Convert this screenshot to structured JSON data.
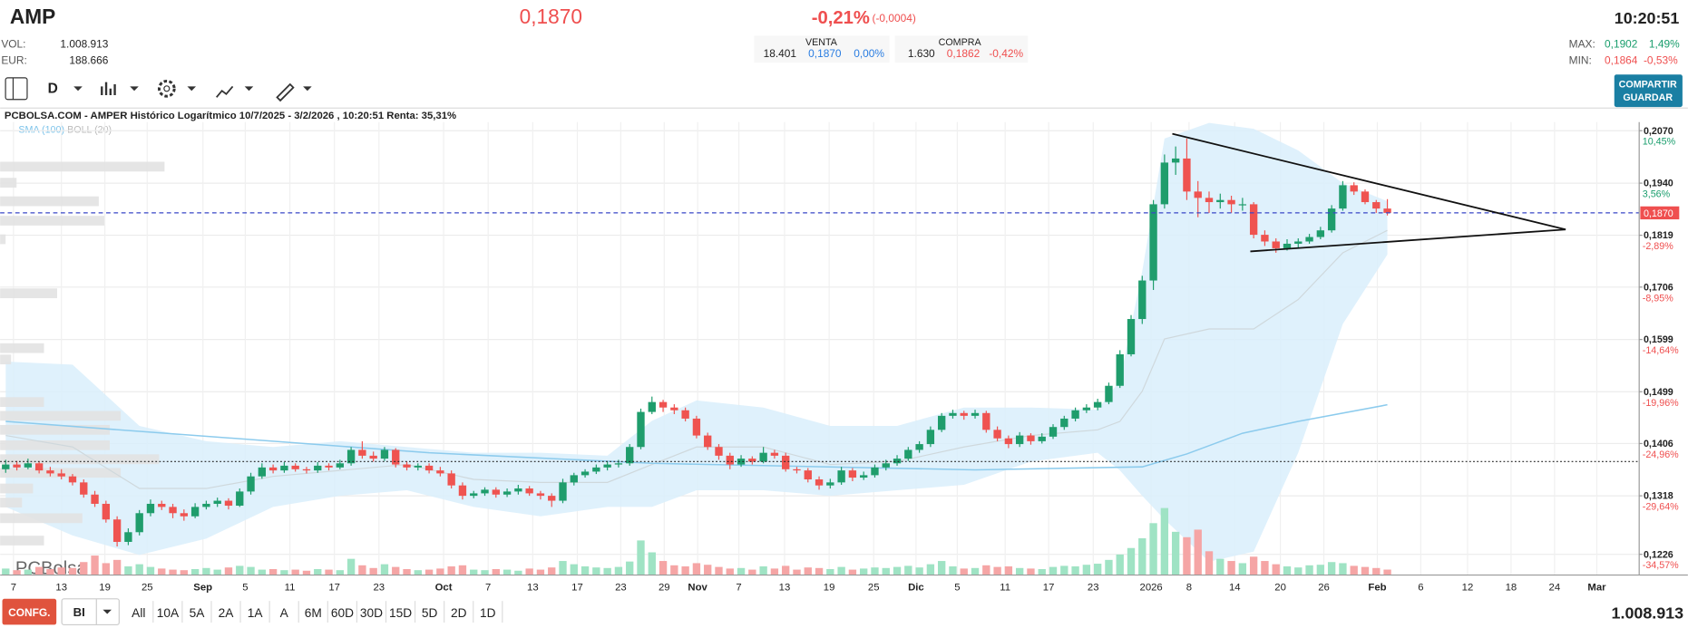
{
  "header": {
    "symbol": "AMP",
    "price": "0,1870",
    "change_pct": "-0,21%",
    "change": "(-0,0004)",
    "time": "10:20:51",
    "vol_label": "VOL:",
    "vol": "1.008.913",
    "eur_label": "EUR:",
    "eur": "188.666"
  },
  "quotes": {
    "sell": {
      "label": "VENTA",
      "volume": "18.401",
      "price": "0,1870",
      "pct": "0,00%"
    },
    "buy": {
      "label": "COMPRA",
      "volume": "1.630",
      "price": "0,1862",
      "pct": "-0,42%"
    }
  },
  "range": {
    "max_label": "MAX:",
    "max": "0,1902",
    "max_pct": "1,49%",
    "min_label": "MIN:",
    "min": "0,1864",
    "min_pct": "-0,53%"
  },
  "toolbar": {
    "interval": "D",
    "share_buttons": [
      "COMPARTIR",
      "GUARDAR"
    ]
  },
  "chart_data": {
    "type": "candlestick",
    "title": "PCBOLSA.COM - AMPER Histórico Logarítmico 10/7/2025 - 3/2/2026 , 10:20:51 Renta: 35,31%",
    "indicators": [
      "SMA (100)",
      "BOLL (20)"
    ],
    "watermark": "PCBolsa",
    "log": true,
    "grid": true,
    "up_color": "#1f9d6c",
    "down_color": "#ef5350",
    "volume_up_color": "#9fe3c4",
    "volume_down_color": "#f5a5a5",
    "ylim": [
      0.1195,
      0.2092
    ],
    "yticks": [
      {
        "value": 0.207,
        "label": "0,2070"
      },
      {
        "value": 0.194,
        "label": "0,1940"
      },
      {
        "value": 0.1819,
        "label": "0,1819"
      },
      {
        "value": 0.1706,
        "label": "0,1706"
      },
      {
        "value": 0.1599,
        "label": "0,1599"
      },
      {
        "value": 0.1499,
        "label": "0,1499"
      },
      {
        "value": 0.1406,
        "label": "0,1406"
      },
      {
        "value": 0.1318,
        "label": "0,1318"
      },
      {
        "value": 0.1226,
        "label": "0,1226"
      }
    ],
    "ytick_pcts": [
      "10,45%",
      "3,56%",
      "-2,89%",
      "-8,95%",
      "-14,64%",
      "-19,96%",
      "-24,96%",
      "-29,64%",
      "-34,57%"
    ],
    "xlim": [
      -0.5,
      146.6
    ],
    "xticks": [
      {
        "value": 0.7,
        "label": "7"
      },
      {
        "value": 5,
        "label": "13"
      },
      {
        "value": 8.9,
        "label": "19"
      },
      {
        "value": 12.7,
        "label": "25"
      },
      {
        "value": 17.7,
        "label": "Sep"
      },
      {
        "value": 21.5,
        "label": "5"
      },
      {
        "value": 25.5,
        "label": "11"
      },
      {
        "value": 29.5,
        "label": "17"
      },
      {
        "value": 33.5,
        "label": "23"
      },
      {
        "value": 39.3,
        "label": "Oct"
      },
      {
        "value": 43.3,
        "label": "7"
      },
      {
        "value": 47.3,
        "label": "13"
      },
      {
        "value": 51.3,
        "label": "17"
      },
      {
        "value": 55.2,
        "label": "23"
      },
      {
        "value": 59.1,
        "label": "29"
      },
      {
        "value": 62.1,
        "label": "Nov"
      },
      {
        "value": 65.8,
        "label": "7"
      },
      {
        "value": 69.9,
        "label": "13"
      },
      {
        "value": 73.9,
        "label": "19"
      },
      {
        "value": 77.9,
        "label": "25"
      },
      {
        "value": 81.7,
        "label": "Dic"
      },
      {
        "value": 85.4,
        "label": "5"
      },
      {
        "value": 89.7,
        "label": "11"
      },
      {
        "value": 93.6,
        "label": "17"
      },
      {
        "value": 97.6,
        "label": "23"
      },
      {
        "value": 102.8,
        "label": "2026"
      },
      {
        "value": 106.2,
        "label": "8"
      },
      {
        "value": 110.3,
        "label": "14"
      },
      {
        "value": 114.4,
        "label": "20"
      },
      {
        "value": 118.3,
        "label": "26"
      },
      {
        "value": 123.1,
        "label": "Feb"
      },
      {
        "value": 127,
        "label": "6"
      },
      {
        "value": 131.2,
        "label": "12"
      },
      {
        "value": 135.1,
        "label": "18"
      },
      {
        "value": 139,
        "label": "24"
      },
      {
        "value": 142.8,
        "label": "Mar"
      }
    ],
    "candles": [
      [
        0.1362,
        0.1378,
        0.1356,
        0.137
      ],
      [
        0.137,
        0.1376,
        0.136,
        0.1365
      ],
      [
        0.1365,
        0.138,
        0.1362,
        0.1372
      ],
      [
        0.1372,
        0.1375,
        0.1355,
        0.136
      ],
      [
        0.136,
        0.1366,
        0.135,
        0.1355
      ],
      [
        0.1355,
        0.1362,
        0.1345,
        0.135
      ],
      [
        0.135,
        0.1354,
        0.1335,
        0.134
      ],
      [
        0.134,
        0.1345,
        0.1315,
        0.132
      ],
      [
        0.132,
        0.1326,
        0.13,
        0.1305
      ],
      [
        0.1305,
        0.131,
        0.1275,
        0.128
      ],
      [
        0.128,
        0.1285,
        0.1238,
        0.1245
      ],
      [
        0.1245,
        0.1266,
        0.124,
        0.126
      ],
      [
        0.126,
        0.1295,
        0.1255,
        0.129
      ],
      [
        0.129,
        0.1312,
        0.1285,
        0.1305
      ],
      [
        0.1305,
        0.131,
        0.1295,
        0.13
      ],
      [
        0.13,
        0.1305,
        0.1282,
        0.129
      ],
      [
        0.129,
        0.1296,
        0.1278,
        0.1285
      ],
      [
        0.1285,
        0.1306,
        0.1282,
        0.13
      ],
      [
        0.13,
        0.131,
        0.1296,
        0.1305
      ],
      [
        0.1305,
        0.1315,
        0.13,
        0.131
      ],
      [
        0.131,
        0.1314,
        0.1296,
        0.1302
      ],
      [
        0.1302,
        0.133,
        0.13,
        0.1325
      ],
      [
        0.1325,
        0.1356,
        0.132,
        0.135
      ],
      [
        0.135,
        0.1372,
        0.1346,
        0.1365
      ],
      [
        0.1365,
        0.137,
        0.1355,
        0.136
      ],
      [
        0.136,
        0.1374,
        0.1356,
        0.1368
      ],
      [
        0.1368,
        0.1372,
        0.1358,
        0.1362
      ],
      [
        0.1362,
        0.1366,
        0.1355,
        0.136
      ],
      [
        0.136,
        0.1374,
        0.1356,
        0.1368
      ],
      [
        0.1368,
        0.1372,
        0.136,
        0.1365
      ],
      [
        0.1365,
        0.1378,
        0.1362,
        0.1372
      ],
      [
        0.1372,
        0.14,
        0.1368,
        0.1395
      ],
      [
        0.1395,
        0.141,
        0.138,
        0.1385
      ],
      [
        0.1385,
        0.1392,
        0.1375,
        0.138
      ],
      [
        0.138,
        0.14,
        0.1376,
        0.1395
      ],
      [
        0.1395,
        0.1398,
        0.1365,
        0.137
      ],
      [
        0.137,
        0.1375,
        0.136,
        0.1365
      ],
      [
        0.1365,
        0.1372,
        0.136,
        0.1368
      ],
      [
        0.1368,
        0.1372,
        0.1355,
        0.136
      ],
      [
        0.136,
        0.1366,
        0.135,
        0.1355
      ],
      [
        0.1355,
        0.136,
        0.133,
        0.1335
      ],
      [
        0.1335,
        0.134,
        0.1312,
        0.1318
      ],
      [
        0.1318,
        0.1326,
        0.1314,
        0.1322
      ],
      [
        0.1322,
        0.1332,
        0.1318,
        0.1328
      ],
      [
        0.1328,
        0.1332,
        0.1315,
        0.132
      ],
      [
        0.132,
        0.133,
        0.1316,
        0.1325
      ],
      [
        0.1325,
        0.1336,
        0.132,
        0.133
      ],
      [
        0.133,
        0.1334,
        0.1318,
        0.1322
      ],
      [
        0.1322,
        0.1326,
        0.1312,
        0.1318
      ],
      [
        0.1318,
        0.1322,
        0.13,
        0.131
      ],
      [
        0.131,
        0.1346,
        0.1306,
        0.134
      ],
      [
        0.134,
        0.1356,
        0.1335,
        0.1352
      ],
      [
        0.1352,
        0.1362,
        0.1348,
        0.1358
      ],
      [
        0.1358,
        0.137,
        0.1354,
        0.1365
      ],
      [
        0.1365,
        0.1375,
        0.136,
        0.137
      ],
      [
        0.137,
        0.1378,
        0.1365,
        0.1372
      ],
      [
        0.1372,
        0.1405,
        0.1368,
        0.14
      ],
      [
        0.14,
        0.1468,
        0.1396,
        0.1462
      ],
      [
        0.1462,
        0.149,
        0.1458,
        0.148
      ],
      [
        0.148,
        0.1484,
        0.1462,
        0.147
      ],
      [
        0.147,
        0.1476,
        0.1458,
        0.1465
      ],
      [
        0.1465,
        0.147,
        0.1445,
        0.145
      ],
      [
        0.145,
        0.1455,
        0.1415,
        0.142
      ],
      [
        0.142,
        0.1425,
        0.1395,
        0.14
      ],
      [
        0.14,
        0.1405,
        0.1378,
        0.1385
      ],
      [
        0.1385,
        0.139,
        0.1362,
        0.137
      ],
      [
        0.137,
        0.1386,
        0.1366,
        0.138
      ],
      [
        0.138,
        0.1384,
        0.137,
        0.1375
      ],
      [
        0.1375,
        0.14,
        0.1372,
        0.139
      ],
      [
        0.139,
        0.1395,
        0.138,
        0.1385
      ],
      [
        0.1385,
        0.139,
        0.1358,
        0.1362
      ],
      [
        0.1362,
        0.1366,
        0.1355,
        0.136
      ],
      [
        0.136,
        0.1364,
        0.134,
        0.1345
      ],
      [
        0.1345,
        0.135,
        0.1328,
        0.1335
      ],
      [
        0.1335,
        0.1346,
        0.133,
        0.134
      ],
      [
        0.134,
        0.1366,
        0.1336,
        0.136
      ],
      [
        0.136,
        0.1364,
        0.1342,
        0.1348
      ],
      [
        0.1348,
        0.1358,
        0.1344,
        0.1352
      ],
      [
        0.1352,
        0.137,
        0.1348,
        0.1365
      ],
      [
        0.1365,
        0.1378,
        0.136,
        0.1372
      ],
      [
        0.1372,
        0.1386,
        0.1368,
        0.138
      ],
      [
        0.138,
        0.14,
        0.1376,
        0.1395
      ],
      [
        0.1395,
        0.141,
        0.139,
        0.1405
      ],
      [
        0.1405,
        0.1436,
        0.14,
        0.143
      ],
      [
        0.143,
        0.146,
        0.1426,
        0.1455
      ],
      [
        0.1455,
        0.1466,
        0.145,
        0.146
      ],
      [
        0.146,
        0.1464,
        0.1448,
        0.1455
      ],
      [
        0.1455,
        0.1466,
        0.145,
        0.146
      ],
      [
        0.146,
        0.1464,
        0.1425,
        0.143
      ],
      [
        0.143,
        0.1436,
        0.141,
        0.1415
      ],
      [
        0.1415,
        0.142,
        0.1398,
        0.1405
      ],
      [
        0.1405,
        0.1426,
        0.14,
        0.142
      ],
      [
        0.142,
        0.1424,
        0.1404,
        0.141
      ],
      [
        0.141,
        0.1424,
        0.1406,
        0.1418
      ],
      [
        0.1418,
        0.144,
        0.1414,
        0.1435
      ],
      [
        0.1435,
        0.1455,
        0.143,
        0.145
      ],
      [
        0.145,
        0.147,
        0.1445,
        0.1465
      ],
      [
        0.1465,
        0.1476,
        0.146,
        0.147
      ],
      [
        0.147,
        0.1486,
        0.1465,
        0.148
      ],
      [
        0.148,
        0.1516,
        0.1476,
        0.151
      ],
      [
        0.151,
        0.1578,
        0.1506,
        0.157
      ],
      [
        0.157,
        0.1648,
        0.1566,
        0.164
      ],
      [
        0.164,
        0.173,
        0.163,
        0.172
      ],
      [
        0.172,
        0.19,
        0.17,
        0.189
      ],
      [
        0.189,
        0.201,
        0.188,
        0.199
      ],
      [
        0.199,
        0.203,
        0.196,
        0.2
      ],
      [
        0.2,
        0.205,
        0.19,
        0.192
      ],
      [
        0.192,
        0.1945,
        0.186,
        0.1905
      ],
      [
        0.1905,
        0.192,
        0.187,
        0.1895
      ],
      [
        0.1895,
        0.1915,
        0.188,
        0.19
      ],
      [
        0.19,
        0.191,
        0.187,
        0.189
      ],
      [
        0.189,
        0.1905,
        0.1875,
        0.189
      ],
      [
        0.189,
        0.1895,
        0.1812,
        0.182
      ],
      [
        0.182,
        0.183,
        0.1795,
        0.1805
      ],
      [
        0.1805,
        0.1812,
        0.178,
        0.179
      ],
      [
        0.179,
        0.181,
        0.1785,
        0.18
      ],
      [
        0.18,
        0.1812,
        0.179,
        0.1805
      ],
      [
        0.1805,
        0.1822,
        0.18,
        0.1815
      ],
      [
        0.1815,
        0.1838,
        0.181,
        0.183
      ],
      [
        0.183,
        0.1888,
        0.1825,
        0.188
      ],
      [
        0.188,
        0.1945,
        0.1875,
        0.1935
      ],
      [
        0.1935,
        0.1942,
        0.1912,
        0.192
      ],
      [
        0.192,
        0.1925,
        0.189,
        0.1895
      ],
      [
        0.1895,
        0.19,
        0.187,
        0.188
      ],
      [
        0.188,
        0.1902,
        0.1864,
        0.187
      ]
    ],
    "volumes": [
      1200000,
      900000,
      1000000,
      1500000,
      1100000,
      1400000,
      1300000,
      2400000,
      3600000,
      2200000,
      2800000,
      1600000,
      2000000,
      1500000,
      1200000,
      1000000,
      900000,
      1100000,
      1300000,
      1000000,
      1400000,
      1700000,
      1500000,
      1000000,
      1100000,
      900000,
      1000000,
      800000,
      1100000,
      1000000,
      900000,
      3000000,
      1800000,
      1300000,
      2000000,
      1500000,
      1100000,
      900000,
      1000000,
      1200000,
      1600000,
      1800000,
      1000000,
      900000,
      1100000,
      1000000,
      800000,
      1200000,
      1000000,
      1400000,
      2600000,
      2000000,
      1600000,
      1400000,
      1300000,
      1500000,
      2500000,
      6400000,
      4200000,
      2600000,
      1800000,
      1600000,
      2200000,
      1900000,
      1500000,
      1200000,
      1300000,
      1000000,
      1600000,
      1200000,
      1700000,
      1000000,
      1400000,
      1300000,
      1100000,
      1500000,
      1000000,
      1200000,
      1400000,
      1300000,
      1500000,
      1700000,
      1400000,
      2000000,
      2600000,
      1600000,
      1200000,
      1300000,
      1800000,
      1500000,
      1600000,
      1300000,
      1200000,
      1100000,
      1500000,
      1700000,
      1600000,
      1900000,
      2100000,
      2800000,
      3800000,
      5000000,
      6800000,
      9600000,
      12400000,
      8000000,
      7000000,
      8400000,
      4400000,
      3000000,
      2600000,
      2200000,
      3400000,
      2600000,
      2000000,
      1600000,
      1400000,
      1800000,
      1900000,
      2400000,
      2200000,
      1700000,
      1500000,
      1300000,
      1008913
    ],
    "sma": {
      "x": [
        0,
        38,
        58,
        87,
        102,
        106,
        111,
        116,
        124
      ],
      "values": [
        0.1445,
        0.139,
        0.1372,
        0.1361,
        0.1366,
        0.1388,
        0.1424,
        0.1445,
        0.1475
      ]
    },
    "bollinger": {
      "x": [
        0,
        6,
        12,
        18,
        24,
        30,
        36,
        42,
        48,
        54,
        58,
        62,
        68,
        74,
        80,
        86,
        92,
        98,
        100,
        102,
        104,
        108,
        112,
        116,
        120,
        124
      ],
      "upper": [
        0.1556,
        0.155,
        0.1437,
        0.141,
        0.14,
        0.141,
        0.14,
        0.139,
        0.139,
        0.1385,
        0.1446,
        0.1483,
        0.147,
        0.1437,
        0.1437,
        0.147,
        0.147,
        0.1466,
        0.152,
        0.174,
        0.205,
        0.209,
        0.2075,
        0.202,
        0.194,
        0.1897
      ],
      "middle": [
        0.142,
        0.14,
        0.133,
        0.133,
        0.135,
        0.136,
        0.137,
        0.1345,
        0.134,
        0.134,
        0.137,
        0.14,
        0.14,
        0.137,
        0.1375,
        0.14,
        0.142,
        0.143,
        0.1445,
        0.15,
        0.16,
        0.162,
        0.162,
        0.168,
        0.178,
        0.183
      ],
      "lower": [
        0.13,
        0.1255,
        0.1225,
        0.125,
        0.13,
        0.1318,
        0.1327,
        0.13,
        0.1285,
        0.13,
        0.13,
        0.1327,
        0.1327,
        0.1318,
        0.1327,
        0.1336,
        0.1375,
        0.139,
        0.136,
        0.1318,
        0.128,
        0.1215,
        0.123,
        0.139,
        0.163,
        0.1776
      ]
    },
    "volume_profile": {
      "prices": [
        0.198,
        0.1941,
        0.1897,
        0.1852,
        0.181,
        0.1693,
        0.1582,
        0.156,
        0.148,
        0.1455,
        0.143,
        0.1403,
        0.1379,
        0.1356,
        0.133,
        0.1307,
        0.1282,
        0.1247
      ],
      "values": [
        15000000,
        1500000,
        9000000,
        9500000,
        500000,
        5200000,
        4000000,
        1000000,
        4000000,
        11000000,
        10000000,
        10000000,
        14500000,
        11000000,
        3000000,
        2000000,
        7500000,
        4000000
      ]
    },
    "current_price": {
      "value": 0.187,
      "label": "0,1870"
    },
    "reference_line": 0.1375,
    "trendlines": [
      {
        "x": [
          104.7,
          140
        ],
        "values": [
          0.2062,
          0.1832
        ]
      },
      {
        "x": [
          111.7,
          140
        ],
        "values": [
          0.1783,
          0.1832
        ]
      }
    ]
  },
  "footer": {
    "config": "CONFG.",
    "mode": "BI",
    "periods": [
      "All",
      "10A",
      "5A",
      "2A",
      "1A",
      "A",
      "6M",
      "60D",
      "30D",
      "15D",
      "5D",
      "2D",
      "1D"
    ],
    "volume": "1.008.913"
  }
}
